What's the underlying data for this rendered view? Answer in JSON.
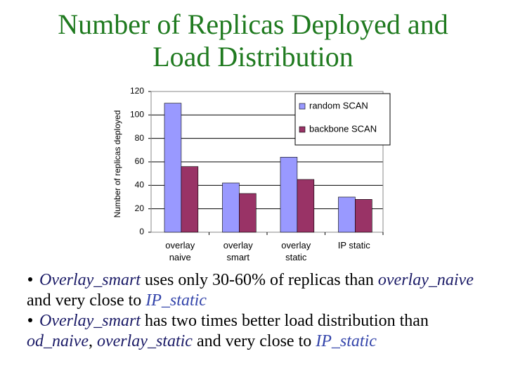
{
  "title": "Number of Replicas Deployed and Load Distribution",
  "chart_data": {
    "type": "bar",
    "y_label": "Number of replicas deployed",
    "categories": [
      "overlay naive",
      "overlay smart",
      "overlay static",
      "IP static"
    ],
    "series": [
      {
        "name": "random SCAN",
        "color": "#9999ff",
        "values": [
          110,
          42,
          64,
          30
        ]
      },
      {
        "name": "backbone SCAN",
        "color": "#993366",
        "values": [
          56,
          33,
          45,
          28
        ]
      }
    ],
    "ylim": [
      0,
      120
    ],
    "yticks": [
      0,
      20,
      40,
      60,
      80,
      100,
      120
    ],
    "grid": true,
    "legend": "upper-right"
  },
  "bullets": [
    [
      "Overlay_smart",
      " uses only 30-60% of replicas than ",
      "overlay_naive",
      " and very close to ",
      "IP_static"
    ],
    [
      "Overlay_smart",
      " has two times better load distribution than ",
      "od_naive",
      ", ",
      "overlay_static",
      " and very close to ",
      "IP_static"
    ]
  ]
}
